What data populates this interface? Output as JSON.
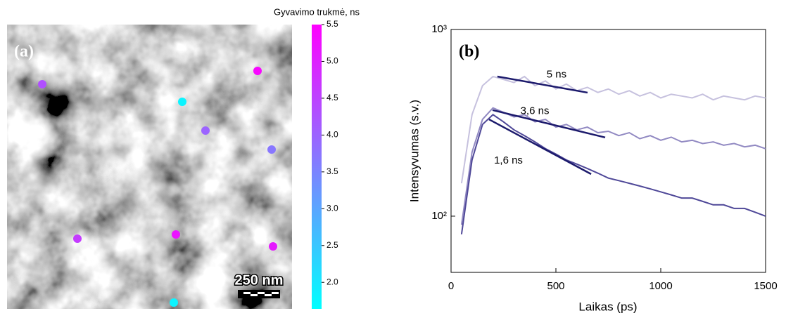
{
  "chart_data": [
    {
      "type": "lifetime-map",
      "title": "(a)",
      "colorbar_label": "Gyvavimo trukmė, ns",
      "clim": [
        1.64,
        5.5
      ],
      "colormap": [
        "#00ffff",
        "#ff00ff"
      ],
      "colorbar_ticks": [
        {
          "value": 2,
          "label": "2.0"
        },
        {
          "value": 2.5,
          "label": "2.5"
        },
        {
          "value": 3,
          "label": "3.0"
        },
        {
          "value": 3.5,
          "label": "3.5"
        },
        {
          "value": 4,
          "label": "4.0"
        },
        {
          "value": 4.5,
          "label": "4.5"
        },
        {
          "value": 5,
          "label": "5.0"
        },
        {
          "value": 5.5,
          "label": "5.5"
        }
      ],
      "values": [
        4.3,
        5.4,
        1.8,
        4.0,
        3.7,
        4.6,
        5.2,
        5.1,
        1.8
      ],
      "scale_bar": "250 nm"
    },
    {
      "type": "line",
      "title": "(b)",
      "x_label": "Laikas (ps)",
      "y_label": "Intensyvumas (s.v.)",
      "log_y": true,
      "xlim": [
        0,
        1500
      ],
      "ylim": [
        50,
        1000
      ],
      "xticks": [
        0,
        500,
        1000,
        1500
      ],
      "yticks": [
        {
          "value": 100,
          "label": "10²"
        },
        {
          "value": 1000,
          "label": "10³"
        }
      ],
      "x": [
        50,
        100,
        150,
        200,
        250,
        300,
        350,
        400,
        450,
        500,
        550,
        600,
        650,
        700,
        750,
        800,
        850,
        900,
        950,
        1000,
        1050,
        1100,
        1150,
        1200,
        1250,
        1300,
        1350,
        1400,
        1450,
        1500
      ],
      "series": [
        {
          "color": "#c6c1de",
          "values": [
            150,
            350,
            500,
            560,
            540,
            520,
            560,
            500,
            530,
            480,
            510,
            470,
            490,
            460,
            480,
            450,
            470,
            440,
            460,
            430,
            450,
            440,
            430,
            450,
            420,
            440,
            430,
            420,
            440,
            430
          ]
        },
        {
          "color": "#9189c2",
          "values": [
            90,
            220,
            330,
            380,
            360,
            340,
            350,
            320,
            330,
            300,
            310,
            290,
            300,
            280,
            285,
            270,
            280,
            260,
            270,
            255,
            265,
            250,
            255,
            245,
            250,
            240,
            245,
            235,
            240,
            230
          ]
        },
        {
          "color": "#4f4898",
          "values": [
            80,
            200,
            310,
            350,
            320,
            290,
            270,
            250,
            230,
            215,
            200,
            190,
            180,
            170,
            160,
            155,
            150,
            145,
            140,
            135,
            130,
            125,
            125,
            120,
            115,
            115,
            110,
            110,
            105,
            100
          ]
        }
      ],
      "fits": [
        {
          "label": "5 ns",
          "x": [
            221,
            651
          ],
          "values": [
            560,
            459
          ]
        },
        {
          "label": "3,6 ns",
          "x": [
            198,
            735
          ],
          "values": [
            370,
            264
          ]
        },
        {
          "label": "1,6 ns",
          "x": [
            181,
            668
          ],
          "values": [
            330,
            168
          ]
        }
      ]
    }
  ]
}
